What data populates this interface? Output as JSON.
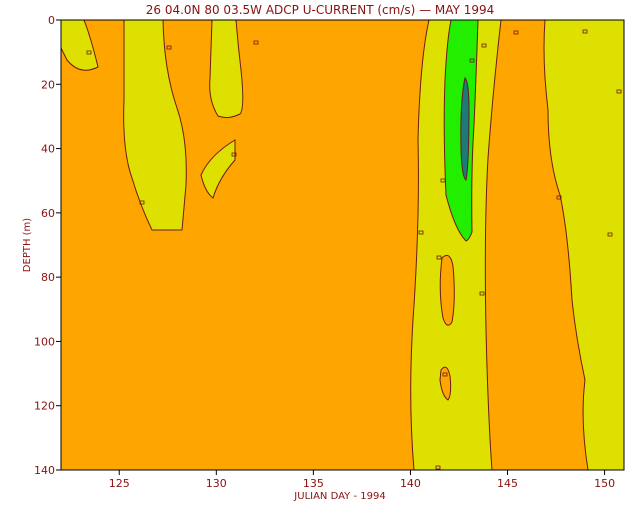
{
  "chart_data": {
    "type": "contour",
    "title": "26 04.0N 80 03.5W ADCP U-CURRENT (cm/s) — MAY 1994",
    "xlabel": "JULIAN DAY - 1994",
    "ylabel": "DEPTH (m)",
    "xlim": [
      122,
      151
    ],
    "ylim": [
      140,
      0
    ],
    "y_axis_inverted": true,
    "xticks": [
      125,
      130,
      135,
      140,
      145,
      150
    ],
    "yticks": [
      0,
      20,
      40,
      60,
      80,
      100,
      120,
      140
    ],
    "grid": false,
    "colors": {
      "background_band": "#ffa500",
      "band_2": "#dde000",
      "band_3": "#22ee00",
      "band_4": "#1c7a78",
      "contour_line": "#6a1a1a",
      "text": "#8a1010"
    },
    "regions": [
      {
        "name": "west-edge",
        "band": 2,
        "days": [
          122.0,
          124.5
        ],
        "depths": [
          0,
          15
        ]
      },
      {
        "name": "west-column",
        "band": 2,
        "days": [
          125.5,
          128.5
        ],
        "depths": [
          0,
          65
        ]
      },
      {
        "name": "upper-cell",
        "band": 2,
        "days": [
          129.8,
          131.8
        ],
        "depths": [
          0,
          36
        ]
      },
      {
        "name": "small-cell",
        "band": 2,
        "days": [
          129.5,
          131.3
        ],
        "depths": [
          36,
          52
        ]
      },
      {
        "name": "gulf-stream-column",
        "band": 2,
        "days": [
          140.0,
          145.0
        ],
        "depths": [
          0,
          140
        ]
      },
      {
        "name": "gulf-stream-core",
        "band": 3,
        "days": [
          141.8,
          143.8
        ],
        "depths": [
          0,
          67
        ]
      },
      {
        "name": "gulf-stream-max",
        "band": 4,
        "days": [
          142.7,
          143.2
        ],
        "depths": [
          18,
          48
        ]
      },
      {
        "name": "east-column",
        "band": 2,
        "days": [
          147.5,
          151.0
        ],
        "depths": [
          0,
          140
        ]
      }
    ]
  }
}
